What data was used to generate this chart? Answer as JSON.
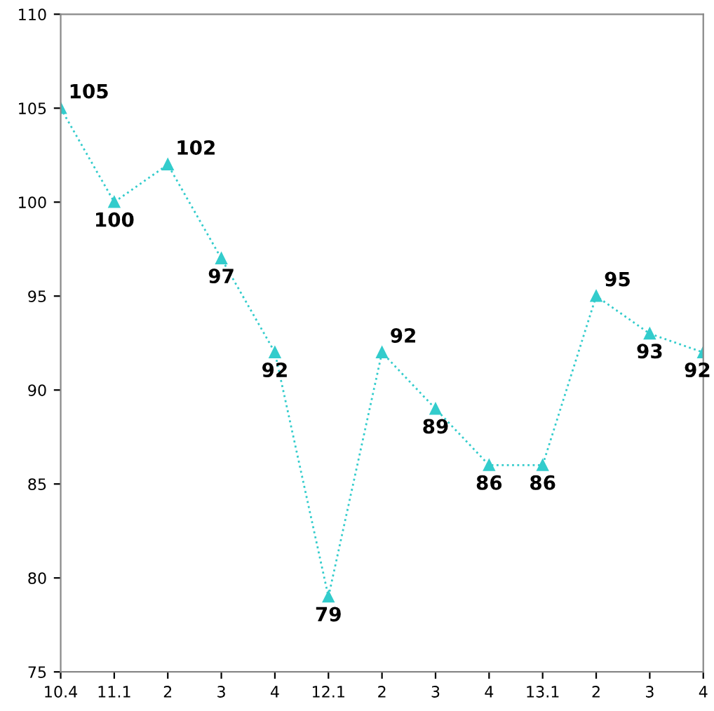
{
  "chart_data": {
    "type": "line",
    "categories": [
      "10.4",
      "11.1",
      "2",
      "3",
      "4",
      "12.1",
      "2",
      "3",
      "4",
      "13.1",
      "2",
      "3",
      "4"
    ],
    "series": [
      {
        "color": "#33cccc",
        "values": [
          105,
          100,
          102,
          97,
          92,
          79,
          92,
          89,
          86,
          86,
          95,
          93,
          92
        ]
      }
    ],
    "ylim": [
      75,
      110
    ],
    "yticks": [
      75,
      80,
      85,
      90,
      95,
      100,
      105,
      110
    ],
    "data_labels": true,
    "marker": "triangle",
    "line_style": "dotted",
    "grid": false,
    "legend": false
  }
}
